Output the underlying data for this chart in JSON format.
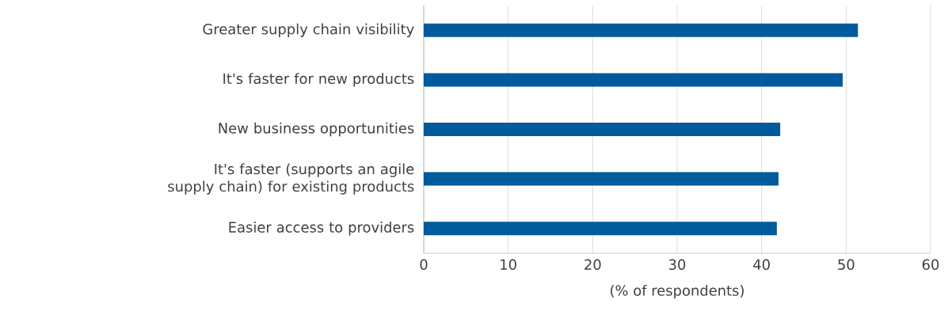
{
  "chart_data": {
    "type": "bar",
    "orientation": "horizontal",
    "categories": [
      "Greater supply chain visibility",
      "It's faster for new products",
      "New business opportunities",
      "It's faster (supports an agile supply chain) for existing products",
      "Easier access to providers"
    ],
    "values": [
      51.4,
      49.6,
      42.2,
      42.0,
      41.8
    ],
    "color": "#005a9c",
    "xlim": [
      0,
      60
    ],
    "xticks": [
      0,
      10,
      20,
      30,
      40,
      50,
      60
    ],
    "xlabel": "(% of respondents)",
    "grid": "x"
  }
}
